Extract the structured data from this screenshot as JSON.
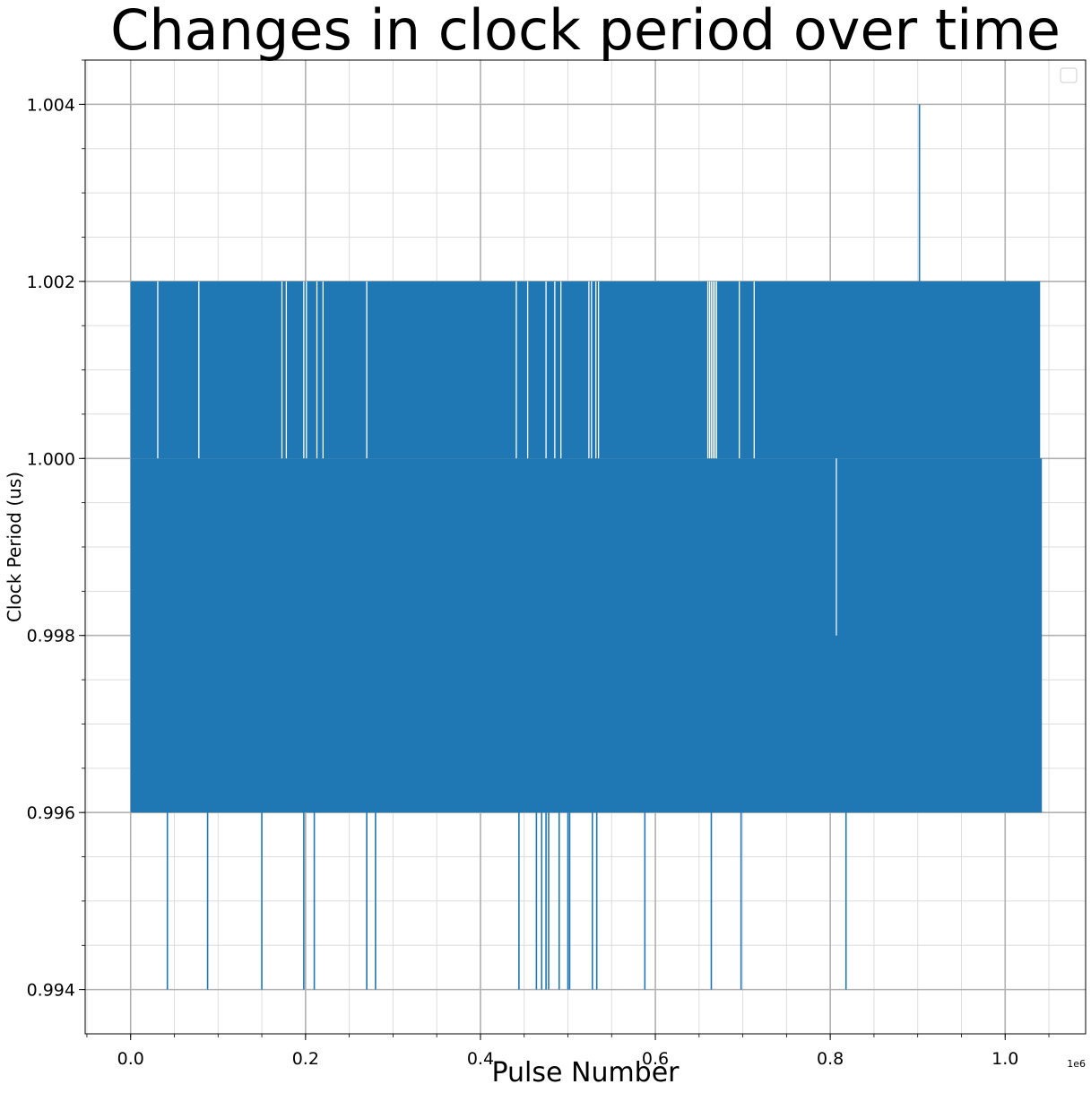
{
  "chart_data": {
    "type": "line",
    "title": "Changes in clock period over time",
    "xlabel": "Pulse Number",
    "ylabel": "Clock Period (us)",
    "x_offset_label": "1e6",
    "x_tick_labels": [
      "0.0",
      "0.2",
      "0.4",
      "0.6",
      "0.8",
      "1.0"
    ],
    "y_tick_labels": [
      "0.994",
      "0.996",
      "0.998",
      "1.000",
      "1.002",
      "1.004"
    ],
    "x_ticks": [
      0.0,
      0.2,
      0.4,
      0.6,
      0.8,
      1.0
    ],
    "y_ticks": [
      0.994,
      0.996,
      0.998,
      1.0,
      1.002,
      1.004
    ],
    "xlim": [
      -0.052,
      1.092
    ],
    "ylim": [
      0.9935,
      1.0045
    ],
    "grid": true,
    "minor_grid": true,
    "legend": "top-right",
    "line_color": "#1f77b4",
    "series": [
      {
        "x_range": [
          0.0,
          1.042
        ],
        "dense_band": [
          0.996,
          1.0
        ],
        "upper_band": [
          1.0,
          1.002
        ],
        "upper_band_x_range": [
          0.0,
          1.04
        ],
        "upper_gaps": [
          0.031,
          0.078,
          0.173,
          0.178,
          0.198,
          0.201,
          0.213,
          0.22,
          0.27,
          0.441,
          0.454,
          0.475,
          0.485,
          0.492,
          0.524,
          0.527,
          0.532,
          0.535,
          0.66,
          0.662,
          0.664,
          0.666,
          0.668,
          0.67,
          0.696,
          0.713
        ],
        "low_spikes": [
          [
            0.042,
            0.994
          ],
          [
            0.088,
            0.994
          ],
          [
            0.15,
            0.994
          ],
          [
            0.198,
            0.994
          ],
          [
            0.21,
            0.994
          ],
          [
            0.27,
            0.994
          ],
          [
            0.28,
            0.994
          ],
          [
            0.444,
            0.994
          ],
          [
            0.464,
            0.994
          ],
          [
            0.47,
            0.994
          ],
          [
            0.475,
            0.994
          ],
          [
            0.478,
            0.994
          ],
          [
            0.49,
            0.994
          ],
          [
            0.5,
            0.994
          ],
          [
            0.502,
            0.994
          ],
          [
            0.528,
            0.994
          ],
          [
            0.533,
            0.994
          ],
          [
            0.588,
            0.994
          ],
          [
            0.664,
            0.994
          ],
          [
            0.698,
            0.994
          ],
          [
            0.818,
            0.994
          ]
        ],
        "high_spikes": [
          [
            0.902,
            1.004
          ]
        ],
        "band_notches": [
          [
            0.807,
            0.998
          ]
        ]
      }
    ]
  }
}
